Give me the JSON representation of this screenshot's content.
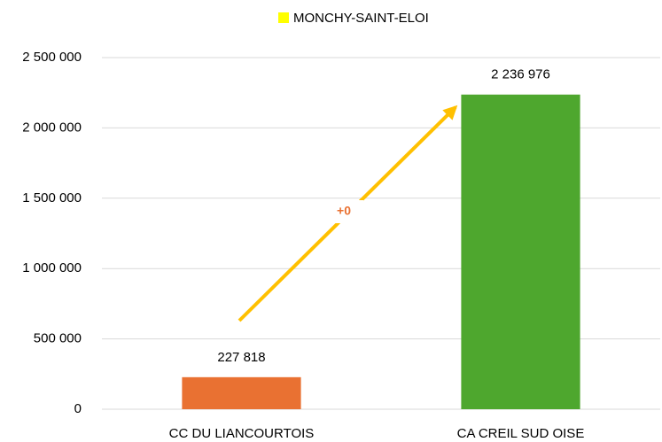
{
  "chart_data": {
    "type": "bar",
    "legend": {
      "label": "MONCHY-SAINT-ELOI",
      "color": "#ffff00",
      "position": "top"
    },
    "categories": [
      "CC DU LIANCOURTOIS",
      "CA CREIL SUD OISE"
    ],
    "values": [
      227818,
      2236976
    ],
    "value_labels": [
      "227 818",
      "2 236 976"
    ],
    "colors": [
      "#e97132",
      "#4ea72e"
    ],
    "annotation": "+0",
    "ylim": [
      0,
      2500000
    ],
    "yticks": [
      0,
      {
        "value": 500000,
        "label": "500 000"
      },
      {
        "value": 1000000,
        "label": "1 000 000"
      },
      {
        "value": 1500000,
        "label": "1 500 000"
      },
      {
        "value": 2000000,
        "label": "2 000 000"
      },
      {
        "value": 2500000,
        "label": "2 500 000"
      }
    ],
    "grid": true
  }
}
